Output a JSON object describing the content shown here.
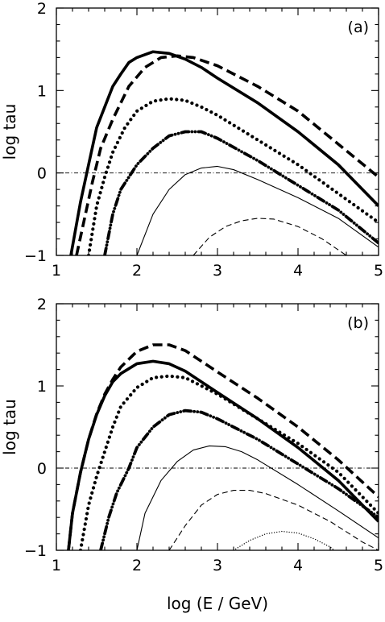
{
  "chart_data": [
    {
      "type": "line",
      "panel_label": "(a)",
      "xlabel": "",
      "ylabel": "log tau",
      "xlim": [
        1,
        5
      ],
      "ylim": [
        -1,
        2
      ],
      "x_ticks": [
        "1",
        "2",
        "3",
        "4",
        "5"
      ],
      "y_ticks": [
        "−1",
        "0",
        "1",
        "2"
      ],
      "reference_line": {
        "y": 0,
        "style": "dash-dot"
      },
      "series": [
        {
          "style": "solid-thick",
          "points": [
            [
              1.18,
              -1.0
            ],
            [
              1.3,
              -0.35
            ],
            [
              1.4,
              0.1
            ],
            [
              1.5,
              0.55
            ],
            [
              1.6,
              0.8
            ],
            [
              1.7,
              1.05
            ],
            [
              1.8,
              1.2
            ],
            [
              1.9,
              1.34
            ],
            [
              2.0,
              1.4
            ],
            [
              2.2,
              1.47
            ],
            [
              2.4,
              1.45
            ],
            [
              2.6,
              1.38
            ],
            [
              2.8,
              1.28
            ],
            [
              3.0,
              1.15
            ],
            [
              3.5,
              0.85
            ],
            [
              4.0,
              0.5
            ],
            [
              4.5,
              0.1
            ],
            [
              5.0,
              -0.4
            ]
          ]
        },
        {
          "style": "dashed-thick",
          "points": [
            [
              1.25,
              -1.0
            ],
            [
              1.35,
              -0.55
            ],
            [
              1.45,
              -0.1
            ],
            [
              1.55,
              0.3
            ],
            [
              1.7,
              0.65
            ],
            [
              1.9,
              1.05
            ],
            [
              2.1,
              1.28
            ],
            [
              2.3,
              1.4
            ],
            [
              2.5,
              1.42
            ],
            [
              2.7,
              1.4
            ],
            [
              3.0,
              1.3
            ],
            [
              3.5,
              1.05
            ],
            [
              4.0,
              0.75
            ],
            [
              4.5,
              0.35
            ],
            [
              5.0,
              -0.05
            ]
          ]
        },
        {
          "style": "dotted-thick",
          "points": [
            [
              1.4,
              -1.0
            ],
            [
              1.5,
              -0.4
            ],
            [
              1.6,
              -0.05
            ],
            [
              1.7,
              0.25
            ],
            [
              1.85,
              0.55
            ],
            [
              2.0,
              0.75
            ],
            [
              2.2,
              0.87
            ],
            [
              2.4,
              0.9
            ],
            [
              2.6,
              0.88
            ],
            [
              2.8,
              0.8
            ],
            [
              3.0,
              0.7
            ],
            [
              3.5,
              0.4
            ],
            [
              4.0,
              0.1
            ],
            [
              4.5,
              -0.25
            ],
            [
              5.0,
              -0.6
            ]
          ]
        },
        {
          "style": "dash-dot-thick",
          "points": [
            [
              1.6,
              -1.0
            ],
            [
              1.7,
              -0.5
            ],
            [
              1.8,
              -0.2
            ],
            [
              2.0,
              0.1
            ],
            [
              2.2,
              0.3
            ],
            [
              2.4,
              0.45
            ],
            [
              2.6,
              0.5
            ],
            [
              2.8,
              0.5
            ],
            [
              3.0,
              0.42
            ],
            [
              3.5,
              0.15
            ],
            [
              4.0,
              -0.15
            ],
            [
              4.5,
              -0.45
            ],
            [
              5.0,
              -0.85
            ]
          ]
        },
        {
          "style": "solid-thin",
          "points": [
            [
              2.0,
              -1.0
            ],
            [
              2.2,
              -0.5
            ],
            [
              2.4,
              -0.2
            ],
            [
              2.6,
              -0.02
            ],
            [
              2.8,
              0.06
            ],
            [
              3.0,
              0.08
            ],
            [
              3.2,
              0.04
            ],
            [
              3.5,
              -0.08
            ],
            [
              4.0,
              -0.3
            ],
            [
              4.5,
              -0.55
            ],
            [
              5.0,
              -0.9
            ]
          ]
        },
        {
          "style": "dashed-thin",
          "points": [
            [
              2.7,
              -1.0
            ],
            [
              2.9,
              -0.78
            ],
            [
              3.1,
              -0.65
            ],
            [
              3.3,
              -0.58
            ],
            [
              3.5,
              -0.55
            ],
            [
              3.7,
              -0.56
            ],
            [
              4.0,
              -0.65
            ],
            [
              4.3,
              -0.8
            ],
            [
              4.6,
              -1.0
            ]
          ]
        }
      ]
    },
    {
      "type": "line",
      "panel_label": "(b)",
      "xlabel": "log (E / GeV)",
      "ylabel": "log tau",
      "xlim": [
        1,
        5
      ],
      "ylim": [
        -1,
        2
      ],
      "x_ticks": [
        "1",
        "2",
        "3",
        "4",
        "5"
      ],
      "y_ticks": [
        "−1",
        "0",
        "1",
        "2"
      ],
      "reference_line": {
        "y": 0,
        "style": "dash-dot"
      },
      "series": [
        {
          "style": "solid-thick",
          "points": [
            [
              1.15,
              -1.0
            ],
            [
              1.2,
              -0.55
            ],
            [
              1.3,
              -0.05
            ],
            [
              1.4,
              0.35
            ],
            [
              1.5,
              0.65
            ],
            [
              1.6,
              0.88
            ],
            [
              1.7,
              1.05
            ],
            [
              1.8,
              1.15
            ],
            [
              2.0,
              1.27
            ],
            [
              2.2,
              1.3
            ],
            [
              2.4,
              1.27
            ],
            [
              2.6,
              1.18
            ],
            [
              2.8,
              1.05
            ],
            [
              3.0,
              0.92
            ],
            [
              3.5,
              0.6
            ],
            [
              4.0,
              0.25
            ],
            [
              4.5,
              -0.15
            ],
            [
              5.0,
              -0.65
            ]
          ]
        },
        {
          "style": "dashed-thick",
          "points": [
            [
              1.15,
              -1.0
            ],
            [
              1.2,
              -0.55
            ],
            [
              1.3,
              -0.05
            ],
            [
              1.4,
              0.35
            ],
            [
              1.5,
              0.66
            ],
            [
              1.6,
              0.9
            ],
            [
              1.7,
              1.08
            ],
            [
              1.8,
              1.23
            ],
            [
              2.0,
              1.42
            ],
            [
              2.2,
              1.5
            ],
            [
              2.4,
              1.5
            ],
            [
              2.6,
              1.43
            ],
            [
              2.8,
              1.3
            ],
            [
              3.0,
              1.17
            ],
            [
              3.5,
              0.85
            ],
            [
              4.0,
              0.5
            ],
            [
              4.5,
              0.1
            ],
            [
              5.0,
              -0.35
            ]
          ]
        },
        {
          "style": "dotted-thick",
          "points": [
            [
              1.3,
              -1.0
            ],
            [
              1.4,
              -0.45
            ],
            [
              1.5,
              -0.1
            ],
            [
              1.6,
              0.2
            ],
            [
              1.7,
              0.5
            ],
            [
              1.8,
              0.75
            ],
            [
              2.0,
              0.98
            ],
            [
              2.2,
              1.1
            ],
            [
              2.4,
              1.12
            ],
            [
              2.6,
              1.1
            ],
            [
              2.8,
              1.0
            ],
            [
              3.0,
              0.9
            ],
            [
              3.5,
              0.6
            ],
            [
              4.0,
              0.3
            ],
            [
              4.5,
              -0.05
            ],
            [
              5.0,
              -0.55
            ]
          ]
        },
        {
          "style": "dash-dot-thick",
          "points": [
            [
              1.55,
              -1.0
            ],
            [
              1.65,
              -0.6
            ],
            [
              1.75,
              -0.3
            ],
            [
              1.9,
              0.0
            ],
            [
              2.0,
              0.25
            ],
            [
              2.2,
              0.5
            ],
            [
              2.4,
              0.65
            ],
            [
              2.6,
              0.7
            ],
            [
              2.8,
              0.68
            ],
            [
              3.0,
              0.6
            ],
            [
              3.5,
              0.35
            ],
            [
              4.0,
              0.05
            ],
            [
              4.5,
              -0.25
            ],
            [
              5.0,
              -0.6
            ]
          ]
        },
        {
          "style": "solid-thin",
          "points": [
            [
              2.0,
              -1.0
            ],
            [
              2.1,
              -0.55
            ],
            [
              2.3,
              -0.15
            ],
            [
              2.5,
              0.08
            ],
            [
              2.7,
              0.22
            ],
            [
              2.9,
              0.27
            ],
            [
              3.1,
              0.26
            ],
            [
              3.3,
              0.2
            ],
            [
              3.5,
              0.1
            ],
            [
              4.0,
              -0.2
            ],
            [
              4.5,
              -0.52
            ],
            [
              5.0,
              -0.85
            ]
          ]
        },
        {
          "style": "dashed-thin",
          "points": [
            [
              2.4,
              -1.0
            ],
            [
              2.6,
              -0.7
            ],
            [
              2.8,
              -0.45
            ],
            [
              3.0,
              -0.32
            ],
            [
              3.2,
              -0.27
            ],
            [
              3.4,
              -0.27
            ],
            [
              3.6,
              -0.31
            ],
            [
              4.0,
              -0.45
            ],
            [
              4.4,
              -0.65
            ],
            [
              4.8,
              -0.9
            ],
            [
              5.0,
              -1.0
            ]
          ]
        },
        {
          "style": "dotted-thin",
          "points": [
            [
              3.2,
              -1.0
            ],
            [
              3.4,
              -0.88
            ],
            [
              3.6,
              -0.8
            ],
            [
              3.8,
              -0.77
            ],
            [
              4.0,
              -0.79
            ],
            [
              4.2,
              -0.86
            ],
            [
              4.4,
              -0.96
            ],
            [
              4.45,
              -1.0
            ]
          ]
        }
      ]
    }
  ]
}
